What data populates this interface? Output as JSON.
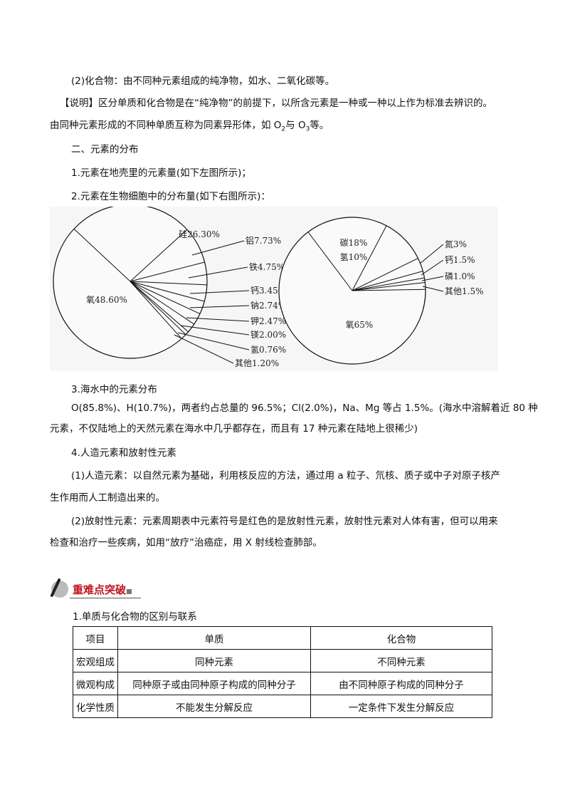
{
  "paragraphs": {
    "p1": "(2)化合物：由不同种元素组成的纯净物，如水、二氧化碳等。",
    "p2": "【说明】区分单质和化合物是在“纯净物”的前提下，以所含元素是一种或一种以上作为标准去辨识的。",
    "p3a": "由同种元素形成的不同种单质互称为同素异形体，如 O",
    "p3sub1": "2",
    "p3b": "与 O",
    "p3sub2": "3",
    "p3c": "等。",
    "h2": "二、元素的分布",
    "l1": "1.元素在地壳里的元素量(如下左图所示)；",
    "l2": "2.元素在生物细胞中的分布量(如下右图所示)：",
    "l3": "3.海水中的元素分布",
    "s1": "O(85.8%)、H(10.7%)，两者约占总量的 96.5%；Cl(2.0%)，Na、Mg 等占 1.5%。(海水中溶解着近 80 种",
    "s2": "元素，不仅陆地上的天然元素在海水中几乎都存在，而且有 17 种元素在陆地上很稀少)",
    "l4": "4.人造元素和放射性元素",
    "a1": "(1)人造元素：以自然元素为基础，利用核反应的方法，通过用 a 粒子、氘核、质子或中子对原子核产",
    "a2": "生作用而人工制造出来的。",
    "r1": "(2)放射性元素：元素周期表中元素符号是红色的是放射性元素，放射性元素对人体有害，但可以用来",
    "r2": "检查和治疗一些疾病，如用“放疗”治癌症，用 X 射线检查肺部。"
  },
  "banner": {
    "title": "重难点突破",
    "color": "#c0141b"
  },
  "section_title": "1.单质与化合物的区别与联系",
  "table": {
    "headers": [
      "项目",
      "单质",
      "化合物"
    ],
    "rows": [
      [
        "宏观组成",
        "同种元素",
        "不同种元素"
      ],
      [
        "微观构成",
        "同种原子或由同种原子构成的同种分子",
        "由不同种原子构成的同种分子"
      ],
      [
        "化学性质",
        "不能发生分解反应",
        "一定条件下发生分解反应"
      ]
    ]
  },
  "chart_data": [
    {
      "type": "pie",
      "slices": [
        {
          "label": "硅26.30%",
          "value": 26.3
        },
        {
          "label": "铝7.73%",
          "value": 7.73
        },
        {
          "label": "铁4.75%",
          "value": 4.75
        },
        {
          "label": "钙3.45%",
          "value": 3.45
        },
        {
          "label": "钠2.74%",
          "value": 2.74
        },
        {
          "label": "钾2.47%",
          "value": 2.47
        },
        {
          "label": "镁2.00%",
          "value": 2.0
        },
        {
          "label": "氢0.76%",
          "value": 0.76
        },
        {
          "label": "其他1.20%",
          "value": 1.2
        },
        {
          "label": "氧48.60%",
          "value": 48.6
        }
      ]
    },
    {
      "type": "pie",
      "slices": [
        {
          "label": "碳18%",
          "value": 18
        },
        {
          "label": "氢10%",
          "value": 10
        },
        {
          "label": "氮3%",
          "value": 3
        },
        {
          "label": "钙1.5%",
          "value": 1.5
        },
        {
          "label": "磷1.0%",
          "value": 1.0
        },
        {
          "label": "其他1.5%",
          "value": 1.5
        },
        {
          "label": "氧65%",
          "value": 65
        }
      ]
    }
  ]
}
